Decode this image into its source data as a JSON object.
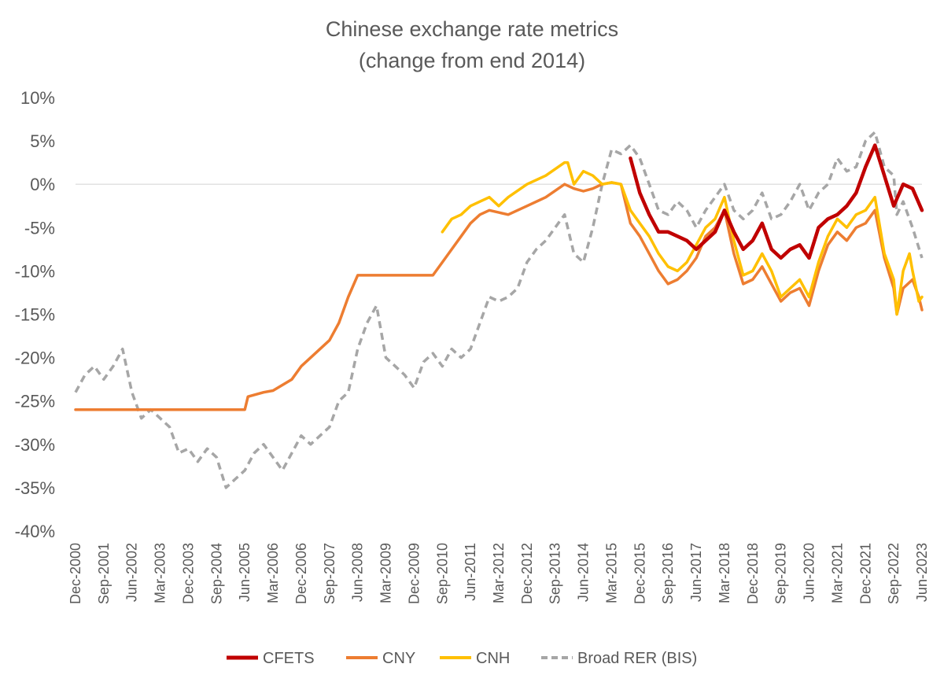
{
  "chart_data": {
    "type": "line",
    "title": "Chinese exchange rate metrics",
    "subtitle": "(change from end 2014)",
    "xlabel": "",
    "ylabel": "",
    "x_start": "Dec-2000",
    "x_end": "Jun-2023",
    "x_unit": "month",
    "ylim": [
      -40,
      10
    ],
    "yticks": [
      10,
      5,
      0,
      -5,
      -10,
      -15,
      -20,
      -25,
      -30,
      -35,
      -40
    ],
    "ytick_labels": [
      "10%",
      "5%",
      "0%",
      "-5%",
      "-10%",
      "-15%",
      "-20%",
      "-25%",
      "-30%",
      "-35%",
      "-40%"
    ],
    "xtick_labels": [
      "Dec-2000",
      "Sep-2001",
      "Jun-2002",
      "Mar-2003",
      "Dec-2003",
      "Sep-2004",
      "Jun-2005",
      "Mar-2006",
      "Dec-2006",
      "Sep-2007",
      "Jun-2008",
      "Mar-2009",
      "Dec-2009",
      "Sep-2010",
      "Jun-2011",
      "Mar-2012",
      "Dec-2012",
      "Sep-2013",
      "Jun-2014",
      "Mar-2015",
      "Dec-2015",
      "Sep-2016",
      "Jun-2017",
      "Mar-2018",
      "Dec-2018",
      "Sep-2019",
      "Jun-2020",
      "Mar-2021",
      "Dec-2021",
      "Sep-2022",
      "Jun-2023"
    ],
    "grid": false,
    "zero_line": true,
    "legend_position": "bottom",
    "series": [
      {
        "name": "CFETS",
        "color": "#C00000",
        "style": "solid",
        "points": [
          [
            "Sep-2015",
            3
          ],
          [
            "Dec-2015",
            -1
          ],
          [
            "Mar-2016",
            -3.5
          ],
          [
            "Jun-2016",
            -5.5
          ],
          [
            "Sep-2016",
            -5.5
          ],
          [
            "Dec-2016",
            -6
          ],
          [
            "Mar-2017",
            -6.5
          ],
          [
            "Jun-2017",
            -7.5
          ],
          [
            "Sep-2017",
            -6.5
          ],
          [
            "Dec-2017",
            -5.5
          ],
          [
            "Mar-2018",
            -3
          ],
          [
            "Jun-2018",
            -5.5
          ],
          [
            "Sep-2018",
            -7.5
          ],
          [
            "Dec-2018",
            -6.5
          ],
          [
            "Mar-2019",
            -4.5
          ],
          [
            "Jun-2019",
            -7.5
          ],
          [
            "Sep-2019",
            -8.5
          ],
          [
            "Dec-2019",
            -7.5
          ],
          [
            "Mar-2020",
            -7
          ],
          [
            "Jun-2020",
            -8.5
          ],
          [
            "Sep-2020",
            -5
          ],
          [
            "Dec-2020",
            -4
          ],
          [
            "Mar-2021",
            -3.5
          ],
          [
            "Jun-2021",
            -2.5
          ],
          [
            "Sep-2021",
            -1
          ],
          [
            "Dec-2021",
            2
          ],
          [
            "Mar-2022",
            4.5
          ],
          [
            "Jun-2022",
            1
          ],
          [
            "Sep-2022",
            -2.5
          ],
          [
            "Dec-2022",
            0
          ],
          [
            "Mar-2023",
            -0.5
          ],
          [
            "Jun-2023",
            -3
          ]
        ]
      },
      {
        "name": "CNY",
        "color": "#ED7D31",
        "style": "solid",
        "points": [
          [
            "Dec-2000",
            -26
          ],
          [
            "Jun-2005",
            -26
          ],
          [
            "Jul-2005",
            -24.5
          ],
          [
            "Dec-2005",
            -24
          ],
          [
            "Mar-2006",
            -23.8
          ],
          [
            "Sep-2006",
            -22.5
          ],
          [
            "Dec-2006",
            -21
          ],
          [
            "Mar-2007",
            -20
          ],
          [
            "Sep-2007",
            -18
          ],
          [
            "Dec-2007",
            -16
          ],
          [
            "Mar-2008",
            -13
          ],
          [
            "Jun-2008",
            -10.5
          ],
          [
            "Dec-2008",
            -10.5
          ],
          [
            "Jun-2009",
            -10.5
          ],
          [
            "Dec-2009",
            -10.5
          ],
          [
            "Jun-2010",
            -10.5
          ],
          [
            "Sep-2010",
            -9
          ],
          [
            "Dec-2010",
            -7.5
          ],
          [
            "Mar-2011",
            -6
          ],
          [
            "Jun-2011",
            -4.5
          ],
          [
            "Sep-2011",
            -3.5
          ],
          [
            "Dec-2011",
            -3
          ],
          [
            "Jun-2012",
            -3.5
          ],
          [
            "Dec-2012",
            -2.5
          ],
          [
            "Jun-2013",
            -1.5
          ],
          [
            "Dec-2013",
            0
          ],
          [
            "Mar-2014",
            -0.5
          ],
          [
            "Jun-2014",
            -0.8
          ],
          [
            "Sep-2014",
            -0.5
          ],
          [
            "Dec-2014",
            0
          ],
          [
            "Mar-2015",
            0.2
          ],
          [
            "Jun-2015",
            0
          ],
          [
            "Sep-2015",
            -4.5
          ],
          [
            "Dec-2015",
            -6
          ],
          [
            "Mar-2016",
            -8
          ],
          [
            "Jun-2016",
            -10
          ],
          [
            "Sep-2016",
            -11.5
          ],
          [
            "Dec-2016",
            -11
          ],
          [
            "Mar-2017",
            -10
          ],
          [
            "Jun-2017",
            -8.5
          ],
          [
            "Sep-2017",
            -6
          ],
          [
            "Dec-2017",
            -5
          ],
          [
            "Mar-2018",
            -3
          ],
          [
            "Jun-2018",
            -8
          ],
          [
            "Sep-2018",
            -11.5
          ],
          [
            "Dec-2018",
            -11
          ],
          [
            "Mar-2019",
            -9.5
          ],
          [
            "Jun-2019",
            -11.5
          ],
          [
            "Sep-2019",
            -13.5
          ],
          [
            "Dec-2019",
            -12.5
          ],
          [
            "Mar-2020",
            -12
          ],
          [
            "Jun-2020",
            -14
          ],
          [
            "Sep-2020",
            -10
          ],
          [
            "Dec-2020",
            -7
          ],
          [
            "Mar-2021",
            -5.5
          ],
          [
            "Jun-2021",
            -6.5
          ],
          [
            "Sep-2021",
            -5
          ],
          [
            "Dec-2021",
            -4.5
          ],
          [
            "Mar-2022",
            -3
          ],
          [
            "Jun-2022",
            -8.5
          ],
          [
            "Sep-2022",
            -12
          ],
          [
            "Oct-2022",
            -15
          ],
          [
            "Dec-2022",
            -12
          ],
          [
            "Mar-2023",
            -11
          ],
          [
            "May-2023",
            -13
          ],
          [
            "Jun-2023",
            -14.5
          ]
        ]
      },
      {
        "name": "CNH",
        "color": "#FFC000",
        "style": "solid",
        "points": [
          [
            "Sep-2010",
            -5.5
          ],
          [
            "Dec-2010",
            -4
          ],
          [
            "Mar-2011",
            -3.5
          ],
          [
            "Jun-2011",
            -2.5
          ],
          [
            "Sep-2011",
            -2
          ],
          [
            "Dec-2011",
            -1.5
          ],
          [
            "Mar-2012",
            -2.5
          ],
          [
            "Jun-2012",
            -1.5
          ],
          [
            "Dec-2012",
            0
          ],
          [
            "Jun-2013",
            1
          ],
          [
            "Dec-2013",
            2.5
          ],
          [
            "Jan-2014",
            2.5
          ],
          [
            "Mar-2014",
            0
          ],
          [
            "Jun-2014",
            1.5
          ],
          [
            "Sep-2014",
            1
          ],
          [
            "Dec-2014",
            0
          ],
          [
            "Mar-2015",
            0.2
          ],
          [
            "Jun-2015",
            0
          ],
          [
            "Sep-2015",
            -3
          ],
          [
            "Dec-2015",
            -4.5
          ],
          [
            "Mar-2016",
            -6
          ],
          [
            "Jun-2016",
            -8
          ],
          [
            "Sep-2016",
            -9.5
          ],
          [
            "Dec-2016",
            -10
          ],
          [
            "Mar-2017",
            -9
          ],
          [
            "Jun-2017",
            -7
          ],
          [
            "Sep-2017",
            -5
          ],
          [
            "Dec-2017",
            -4
          ],
          [
            "Mar-2018",
            -1.5
          ],
          [
            "Jun-2018",
            -6.5
          ],
          [
            "Sep-2018",
            -10.5
          ],
          [
            "Dec-2018",
            -10
          ],
          [
            "Mar-2019",
            -8
          ],
          [
            "Jun-2019",
            -10
          ],
          [
            "Sep-2019",
            -13
          ],
          [
            "Dec-2019",
            -12
          ],
          [
            "Mar-2020",
            -11
          ],
          [
            "Jun-2020",
            -13
          ],
          [
            "Sep-2020",
            -9
          ],
          [
            "Dec-2020",
            -6
          ],
          [
            "Mar-2021",
            -4
          ],
          [
            "Jun-2021",
            -5
          ],
          [
            "Sep-2021",
            -3.5
          ],
          [
            "Dec-2021",
            -3
          ],
          [
            "Mar-2022",
            -1.5
          ],
          [
            "Jun-2022",
            -8
          ],
          [
            "Sep-2022",
            -11
          ],
          [
            "Oct-2022",
            -15
          ],
          [
            "Dec-2022",
            -10
          ],
          [
            "Feb-2023",
            -8
          ],
          [
            "Mar-2023",
            -10
          ],
          [
            "May-2023",
            -13.5
          ],
          [
            "Jun-2023",
            -13
          ]
        ]
      },
      {
        "name": "Broad RER (BIS)",
        "color": "#A6A6A6",
        "style": "dashed",
        "points": [
          [
            "Dec-2000",
            -24
          ],
          [
            "Mar-2001",
            -22
          ],
          [
            "Jun-2001",
            -21
          ],
          [
            "Sep-2001",
            -22.5
          ],
          [
            "Dec-2001",
            -21
          ],
          [
            "Mar-2002",
            -19
          ],
          [
            "Jun-2002",
            -24
          ],
          [
            "Sep-2002",
            -27
          ],
          [
            "Dec-2002",
            -26
          ],
          [
            "Mar-2003",
            -27
          ],
          [
            "Jun-2003",
            -28
          ],
          [
            "Sep-2003",
            -31
          ],
          [
            "Dec-2003",
            -30.5
          ],
          [
            "Mar-2004",
            -32
          ],
          [
            "Jun-2004",
            -30.5
          ],
          [
            "Sep-2004",
            -31.5
          ],
          [
            "Dec-2004",
            -35
          ],
          [
            "Mar-2005",
            -34
          ],
          [
            "Jun-2005",
            -33
          ],
          [
            "Sep-2005",
            -31
          ],
          [
            "Dec-2005",
            -30
          ],
          [
            "Mar-2006",
            -31.5
          ],
          [
            "Jun-2006",
            -33
          ],
          [
            "Sep-2006",
            -31
          ],
          [
            "Dec-2006",
            -29
          ],
          [
            "Mar-2007",
            -30
          ],
          [
            "Jun-2007",
            -29
          ],
          [
            "Sep-2007",
            -28
          ],
          [
            "Dec-2007",
            -25
          ],
          [
            "Mar-2008",
            -24
          ],
          [
            "Jun-2008",
            -19
          ],
          [
            "Sep-2008",
            -16
          ],
          [
            "Dec-2008",
            -14
          ],
          [
            "Mar-2009",
            -20
          ],
          [
            "Jun-2009",
            -21
          ],
          [
            "Sep-2009",
            -22
          ],
          [
            "Dec-2009",
            -23.5
          ],
          [
            "Mar-2010",
            -20.5
          ],
          [
            "Jun-2010",
            -19.5
          ],
          [
            "Sep-2010",
            -21
          ],
          [
            "Dec-2010",
            -19
          ],
          [
            "Mar-2011",
            -20
          ],
          [
            "Jun-2011",
            -19
          ],
          [
            "Sep-2011",
            -16
          ],
          [
            "Dec-2011",
            -13
          ],
          [
            "Mar-2012",
            -13.5
          ],
          [
            "Jun-2012",
            -13
          ],
          [
            "Sep-2012",
            -12
          ],
          [
            "Dec-2012",
            -9
          ],
          [
            "Mar-2013",
            -7.5
          ],
          [
            "Jun-2013",
            -6.5
          ],
          [
            "Sep-2013",
            -5
          ],
          [
            "Dec-2013",
            -3.5
          ],
          [
            "Mar-2014",
            -8
          ],
          [
            "Jun-2014",
            -9
          ],
          [
            "Sep-2014",
            -5
          ],
          [
            "Dec-2014",
            0
          ],
          [
            "Mar-2015",
            4
          ],
          [
            "Jun-2015",
            3.5
          ],
          [
            "Sep-2015",
            4.5
          ],
          [
            "Dec-2015",
            3
          ],
          [
            "Mar-2016",
            0
          ],
          [
            "Jun-2016",
            -3
          ],
          [
            "Sep-2016",
            -3.5
          ],
          [
            "Dec-2016",
            -2
          ],
          [
            "Mar-2017",
            -3
          ],
          [
            "Jun-2017",
            -5
          ],
          [
            "Sep-2017",
            -3
          ],
          [
            "Dec-2017",
            -1.5
          ],
          [
            "Mar-2018",
            0
          ],
          [
            "Jun-2018",
            -3
          ],
          [
            "Sep-2018",
            -4
          ],
          [
            "Dec-2018",
            -3
          ],
          [
            "Mar-2019",
            -1
          ],
          [
            "Jun-2019",
            -4
          ],
          [
            "Sep-2019",
            -3.5
          ],
          [
            "Dec-2019",
            -2
          ],
          [
            "Mar-2020",
            0
          ],
          [
            "Jun-2020",
            -3
          ],
          [
            "Sep-2020",
            -1
          ],
          [
            "Dec-2020",
            0
          ],
          [
            "Mar-2021",
            3
          ],
          [
            "Jun-2021",
            1.5
          ],
          [
            "Sep-2021",
            2
          ],
          [
            "Dec-2021",
            5
          ],
          [
            "Mar-2022",
            6
          ],
          [
            "Jun-2022",
            2
          ],
          [
            "Sep-2022",
            1
          ],
          [
            "Oct-2022",
            -3.5
          ],
          [
            "Dec-2022",
            -2
          ],
          [
            "Mar-2023",
            -5
          ],
          [
            "Jun-2023",
            -8.5
          ]
        ]
      }
    ]
  }
}
